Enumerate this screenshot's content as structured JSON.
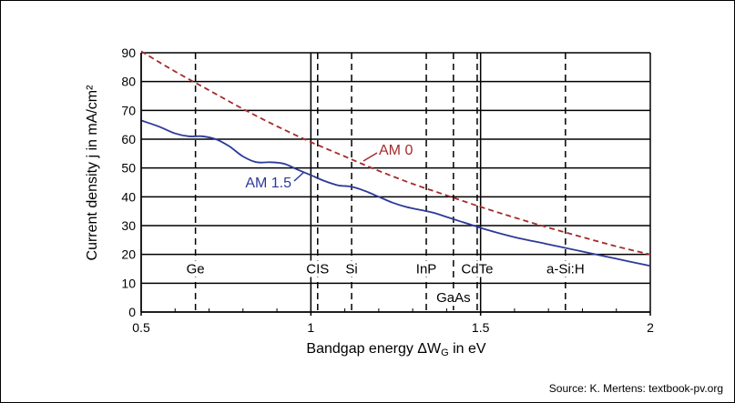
{
  "chart_data": {
    "type": "line",
    "xlabel": "Bandgap energy ΔW",
    "xlabel_sub": "G",
    "xlabel_suffix": " in eV",
    "ylabel": "Current density j in mA/cm²",
    "xlim": [
      0.5,
      2.0
    ],
    "ylim": [
      0,
      90
    ],
    "grid": "horizontal",
    "xticks": [
      {
        "value": 0.5,
        "label": "0.5"
      },
      {
        "value": 1.0,
        "label": "1"
      },
      {
        "value": 1.5,
        "label": "1.5"
      },
      {
        "value": 2.0,
        "label": "2"
      }
    ],
    "yticks": [
      0,
      10,
      20,
      30,
      40,
      50,
      60,
      70,
      80,
      90
    ],
    "materials": [
      {
        "name": "Ge",
        "bandgap": 0.66,
        "row": "upper"
      },
      {
        "name": "CIS",
        "bandgap": 1.02,
        "row": "upper"
      },
      {
        "name": "Si",
        "bandgap": 1.12,
        "row": "upper"
      },
      {
        "name": "InP",
        "bandgap": 1.34,
        "row": "upper"
      },
      {
        "name": "GaAs",
        "bandgap": 1.42,
        "row": "lower"
      },
      {
        "name": "CdTe",
        "bandgap": 1.49,
        "row": "upper"
      },
      {
        "name": "a-Si:H",
        "bandgap": 1.75,
        "row": "upper"
      }
    ],
    "series": [
      {
        "name": "AM 0",
        "color": "#a52a2a",
        "style": "dashed",
        "x": [
          0.5,
          0.6,
          0.7,
          0.8,
          0.9,
          1.0,
          1.1,
          1.2,
          1.3,
          1.4,
          1.5,
          1.6,
          1.7,
          1.8,
          1.9,
          2.0
        ],
        "y": [
          90.5,
          83.5,
          77,
          70.5,
          64.5,
          59,
          54,
          49,
          44.5,
          40.5,
          36.5,
          32.8,
          29.3,
          26,
          22.8,
          20
        ]
      },
      {
        "name": "AM 1.5",
        "color": "#2b3a98",
        "style": "solid",
        "x": [
          0.5,
          0.55,
          0.6,
          0.64,
          0.68,
          0.72,
          0.76,
          0.8,
          0.84,
          0.88,
          0.92,
          0.96,
          1.0,
          1.04,
          1.08,
          1.12,
          1.16,
          1.2,
          1.24,
          1.28,
          1.32,
          1.36,
          1.4,
          1.44,
          1.48,
          1.52,
          1.6,
          1.7,
          1.8,
          1.9,
          2.0
        ],
        "y": [
          66.5,
          64.5,
          62,
          61,
          61,
          60,
          57.5,
          54,
          52,
          52,
          51.5,
          49.5,
          47.5,
          45.5,
          44,
          43.5,
          42,
          40,
          38,
          36.5,
          35.5,
          34.5,
          33,
          31.5,
          30,
          28.5,
          26,
          23.5,
          21,
          18.5,
          16
        ]
      }
    ],
    "annotations": [
      {
        "text": "AM 0",
        "series": "AM 0"
      },
      {
        "text": "AM 1.5",
        "series": "AM 1.5"
      }
    ]
  },
  "source": "Source: K. Mertens: textbook-pv.org"
}
